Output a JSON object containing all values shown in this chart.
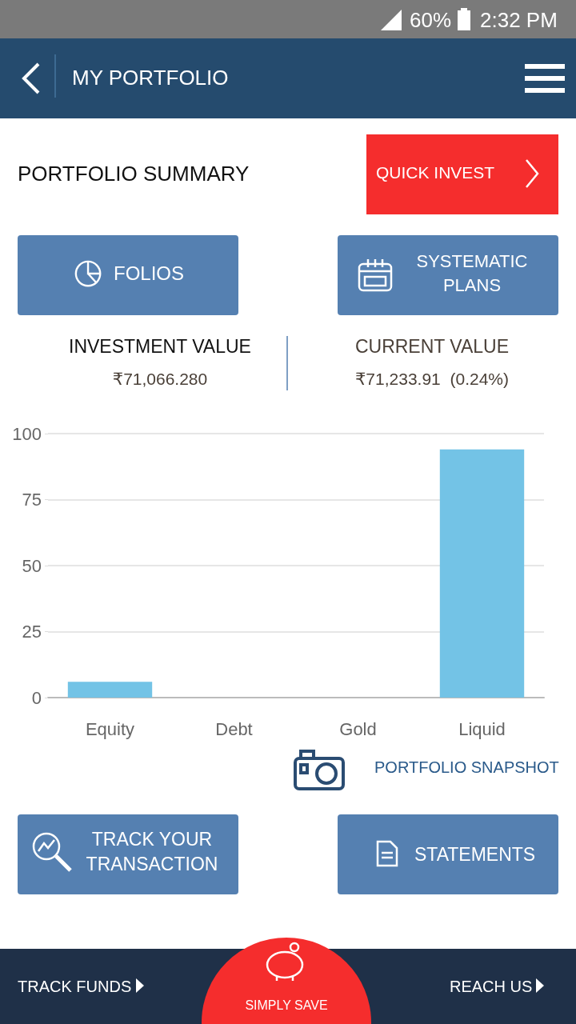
{
  "chart_data": {
    "type": "bar",
    "title": "PORTFOLIO SUMMARY",
    "categories": [
      "Equity",
      "Debt",
      "Gold",
      "Liquid"
    ],
    "values": [
      6,
      0,
      0,
      94
    ],
    "color": "#73c3e6",
    "ylim": [
      0,
      100
    ],
    "yticks": [
      0,
      25,
      50,
      75,
      100
    ],
    "grid": "y",
    "annotations": [
      "60%",
      "2:32 PM",
      "MY PORTFOLIO",
      "QUICK INVEST",
      "FOLIOS",
      "SYSTEMATIC PLANS",
      "INVESTMENT VALUE",
      "₹71,066.280",
      "CURRENT VALUE",
      "₹71,233.91  (0.24%)",
      "PORTFOLIO SNAPSHOT",
      "TRACK YOUR TRANSACTION",
      "STATEMENTS",
      "TRACK FUNDS",
      "SIMPLY SAVE",
      "REACH US"
    ]
  }
}
